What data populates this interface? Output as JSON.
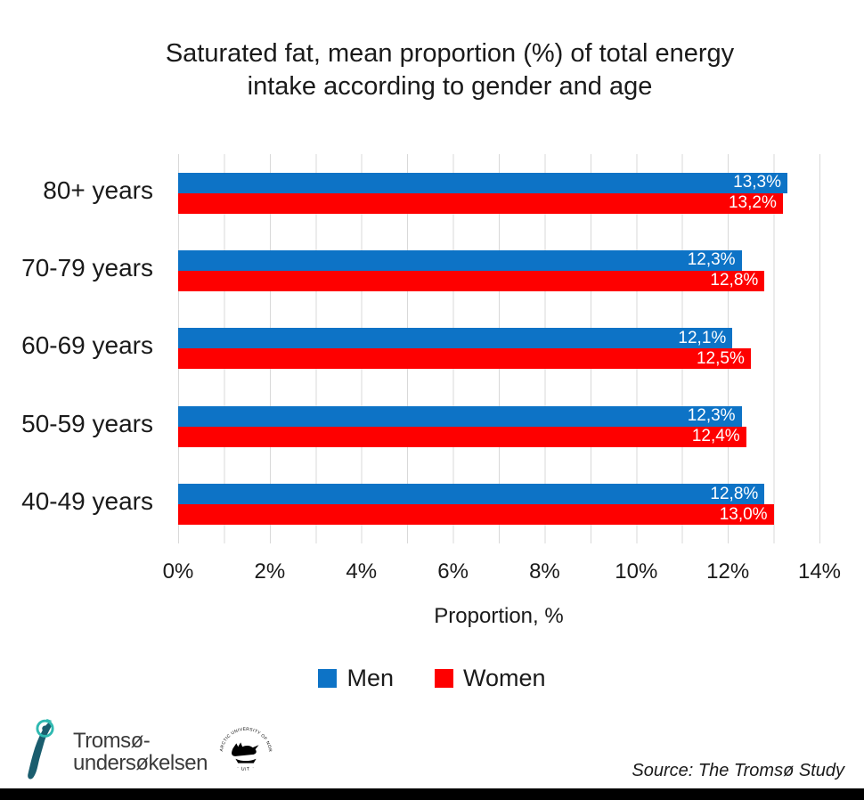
{
  "title": {
    "line1": "Saturated fat, mean proportion (%) of total energy",
    "line2": "intake according to gender and age"
  },
  "chart_data": {
    "type": "bar",
    "orientation": "horizontal",
    "title": "Saturated fat, mean proportion (%) of total energy intake according to gender and age",
    "categories": [
      "80+ years",
      "70-79 years",
      "60-69 years",
      "50-59 years",
      "40-49 years"
    ],
    "series": [
      {
        "name": "Men",
        "color": "#0d73c6",
        "values": [
          13.3,
          12.3,
          12.1,
          12.3,
          12.8
        ],
        "display": [
          "13,3%",
          "12,3%",
          "12,1%",
          "12,3%",
          "12,8%"
        ]
      },
      {
        "name": "Women",
        "color": "#fe0000",
        "values": [
          13.2,
          12.8,
          12.5,
          12.4,
          13.0
        ],
        "display": [
          "13,2%",
          "12,8%",
          "12,5%",
          "12,4%",
          "13,0%"
        ]
      }
    ],
    "xlabel": "Proportion, %",
    "ylabel": "",
    "xlim": [
      0,
      14
    ],
    "x_ticks": [
      "0%",
      "2%",
      "4%",
      "6%",
      "8%",
      "10%",
      "12%",
      "14%"
    ],
    "grid": "vertical gridlines every 1%",
    "legend_position": "bottom",
    "value_labels": "inside end, white, comma decimal separator"
  },
  "legend": {
    "men_label": "Men",
    "women_label": "Women"
  },
  "footer": {
    "logo_line1": "Tromsø-",
    "logo_line2": "undersøkelsen",
    "seal_text_arc": "THE ARCTIC UNIVERSITY OF NORWAY",
    "seal_text_bottom": "· UiT ·",
    "source": "Source: The Tromsø Study"
  },
  "colors": {
    "men": "#0d73c6",
    "women": "#fe0000",
    "gridline": "#d9d9d9",
    "logo_map_teal": "#1a5d6e",
    "logo_ring_turquoise": "#2fb9b1",
    "bottom_bar": "#000000"
  }
}
